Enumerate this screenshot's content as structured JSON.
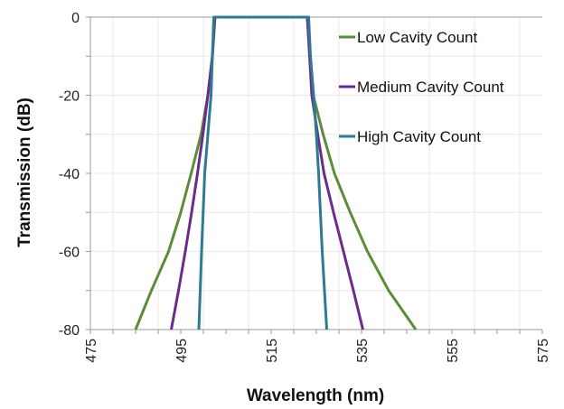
{
  "chart_data": {
    "type": "line",
    "title": "",
    "xlabel": "Wavelength (nm)",
    "ylabel": "Transmission (dB)",
    "xlim": [
      475,
      575
    ],
    "ylim": [
      -80,
      0
    ],
    "xticks": [
      475,
      495,
      515,
      535,
      555,
      575
    ],
    "yticks": [
      0,
      -20,
      -40,
      -60,
      -80
    ],
    "grid": true,
    "legend_position": "top-right",
    "series": [
      {
        "name": "Low Cavity Count",
        "color": "#5b8c3a",
        "x": [
          485,
          488.5,
          492.3,
          495,
          497.3,
          499.5,
          501,
          502,
          502.6,
          523,
          524.3,
          526.5,
          529,
          532.5,
          536.3,
          541,
          547
        ],
        "y": [
          -80,
          -70,
          -60,
          -50,
          -40,
          -30,
          -20,
          -10,
          0,
          0,
          -20,
          -30,
          -40,
          -50,
          -60,
          -70,
          -80
        ]
      },
      {
        "name": "Medium Cavity Count",
        "color": "#6a2c8c",
        "x": [
          492.9,
          494.5,
          496,
          497.4,
          498.7,
          499.9,
          501,
          502,
          502.5,
          523,
          523.5,
          524,
          525.3,
          526.7,
          528.8,
          531,
          533.2,
          535.3
        ],
        "y": [
          -80,
          -70,
          -60,
          -50,
          -40,
          -30,
          -20,
          -10,
          0,
          0,
          -10,
          -20,
          -30,
          -40,
          -50,
          -60,
          -70,
          -80
        ]
      },
      {
        "name": "High Cavity Count",
        "color": "#2f7a93",
        "x": [
          499,
          499.6,
          500.3,
          501,
          501.7,
          502,
          502.3,
          523.3,
          523.7,
          524.4,
          525,
          525.5,
          526.3,
          526.8,
          527.3
        ],
        "y": [
          -80,
          -60,
          -40,
          -30,
          -20,
          -10,
          0,
          0,
          -10,
          -20,
          -30,
          -40,
          -60,
          -70,
          -80
        ]
      }
    ]
  }
}
